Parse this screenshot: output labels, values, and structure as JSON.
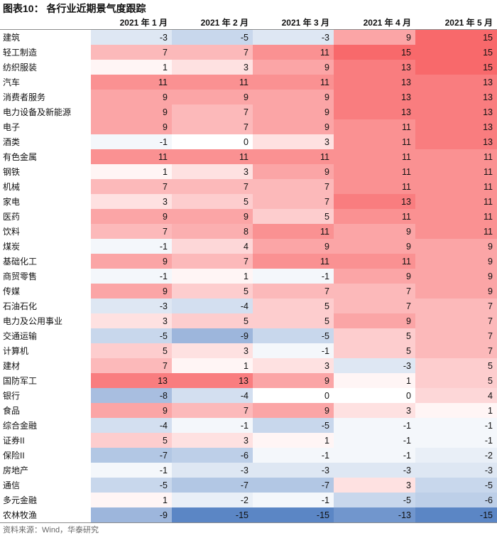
{
  "title": "图表10： 各行业近期景气度跟踪",
  "source": "资料来源：Wind，华泰研究",
  "chart_data": {
    "type": "table",
    "title": "各行业近期景气度跟踪",
    "columns": [
      "2021 年 1 月",
      "2021 年 2 月",
      "2021 年 3 月",
      "2021 年 4 月",
      "2021 年 5 月"
    ],
    "rows": [
      {
        "industry": "建筑",
        "values": [
          -3,
          -5,
          -3,
          9,
          15
        ]
      },
      {
        "industry": "轻工制造",
        "values": [
          7,
          7,
          11,
          15,
          15
        ]
      },
      {
        "industry": "纺织服装",
        "values": [
          1,
          3,
          9,
          13,
          15
        ]
      },
      {
        "industry": "汽车",
        "values": [
          11,
          11,
          11,
          13,
          13
        ]
      },
      {
        "industry": "消费者服务",
        "values": [
          9,
          9,
          9,
          13,
          13
        ]
      },
      {
        "industry": "电力设备及新能源",
        "values": [
          9,
          7,
          9,
          13,
          13
        ]
      },
      {
        "industry": "电子",
        "values": [
          9,
          7,
          9,
          11,
          13
        ]
      },
      {
        "industry": "酒类",
        "values": [
          -1,
          0,
          3,
          11,
          13
        ]
      },
      {
        "industry": "有色金属",
        "values": [
          11,
          11,
          11,
          11,
          11
        ]
      },
      {
        "industry": "钢铁",
        "values": [
          1,
          3,
          9,
          11,
          11
        ]
      },
      {
        "industry": "机械",
        "values": [
          7,
          7,
          7,
          11,
          11
        ]
      },
      {
        "industry": "家电",
        "values": [
          3,
          5,
          7,
          13,
          11
        ]
      },
      {
        "industry": "医药",
        "values": [
          9,
          9,
          5,
          11,
          11
        ]
      },
      {
        "industry": "饮料",
        "values": [
          7,
          8,
          11,
          9,
          11
        ]
      },
      {
        "industry": "煤炭",
        "values": [
          -1,
          4,
          9,
          9,
          9
        ]
      },
      {
        "industry": "基础化工",
        "values": [
          9,
          7,
          11,
          11,
          9
        ]
      },
      {
        "industry": "商贸零售",
        "values": [
          -1,
          1,
          -1,
          9,
          9
        ]
      },
      {
        "industry": "传媒",
        "values": [
          9,
          5,
          7,
          7,
          9
        ]
      },
      {
        "industry": "石油石化",
        "values": [
          -3,
          -4,
          5,
          7,
          7
        ]
      },
      {
        "industry": "电力及公用事业",
        "values": [
          3,
          5,
          5,
          9,
          7
        ]
      },
      {
        "industry": "交通运输",
        "values": [
          -5,
          -9,
          -5,
          5,
          7
        ]
      },
      {
        "industry": "计算机",
        "values": [
          5,
          3,
          -1,
          5,
          7
        ]
      },
      {
        "industry": "建材",
        "values": [
          7,
          1,
          3,
          -3,
          5
        ]
      },
      {
        "industry": "国防军工",
        "values": [
          13,
          13,
          9,
          1,
          5
        ]
      },
      {
        "industry": "银行",
        "values": [
          -8,
          -4,
          0,
          0,
          4
        ]
      },
      {
        "industry": "食品",
        "values": [
          9,
          7,
          9,
          3,
          1
        ]
      },
      {
        "industry": "综合金融",
        "values": [
          -4,
          -1,
          -5,
          -1,
          -1
        ]
      },
      {
        "industry": "证券II",
        "values": [
          5,
          3,
          1,
          -1,
          -1
        ]
      },
      {
        "industry": "保险II",
        "values": [
          -7,
          -6,
          -1,
          -1,
          -2
        ]
      },
      {
        "industry": "房地产",
        "values": [
          -1,
          -3,
          -3,
          -3,
          -3
        ]
      },
      {
        "industry": "通信",
        "values": [
          -5,
          -7,
          -7,
          3,
          -5
        ]
      },
      {
        "industry": "多元金融",
        "values": [
          1,
          -2,
          -1,
          -5,
          -6
        ]
      },
      {
        "industry": "农林牧渔",
        "values": [
          -9,
          -15,
          -15,
          -13,
          -15
        ]
      }
    ],
    "value_range": [
      -15,
      15
    ],
    "color_scale": {
      "negative": "#5b86c5",
      "zero": "#ffffff",
      "positive": "#f8696b"
    }
  }
}
